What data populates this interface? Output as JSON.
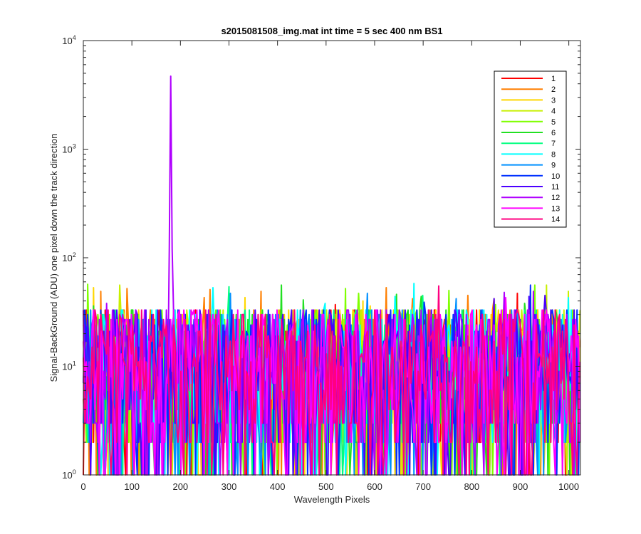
{
  "chart_data": {
    "type": "line",
    "title": "s2015081508_img.mat int time = 5 sec  400 nm BS1",
    "xlabel": "Wavelength Pixels",
    "ylabel": "Signal-BackGround (ADU) one pixel down the track direction",
    "xlim": [
      0,
      1024
    ],
    "ylim": [
      1,
      10000
    ],
    "yscale": "log",
    "x_ticks": [
      "0",
      "100",
      "200",
      "300",
      "400",
      "500",
      "600",
      "700",
      "800",
      "900",
      "1000"
    ],
    "x_tick_values": [
      0,
      100,
      200,
      300,
      400,
      500,
      600,
      700,
      800,
      900,
      1000
    ],
    "y_ticks": [
      {
        "base": "10",
        "exp": "0",
        "value": 1
      },
      {
        "base": "10",
        "exp": "1",
        "value": 10
      },
      {
        "base": "10",
        "exp": "2",
        "value": 100
      },
      {
        "base": "10",
        "exp": "3",
        "value": 1000
      },
      {
        "base": "10",
        "exp": "4",
        "value": 10000
      }
    ],
    "legend_position": "top-right",
    "series": [
      {
        "name": "1",
        "color": "#ff0000"
      },
      {
        "name": "2",
        "color": "#ff7f00"
      },
      {
        "name": "3",
        "color": "#ffd700"
      },
      {
        "name": "4",
        "color": "#c8f000"
      },
      {
        "name": "5",
        "color": "#7fff00"
      },
      {
        "name": "6",
        "color": "#22e022"
      },
      {
        "name": "7",
        "color": "#00ff80"
      },
      {
        "name": "8",
        "color": "#00ffff"
      },
      {
        "name": "9",
        "color": "#0090ff"
      },
      {
        "name": "10",
        "color": "#0030ff"
      },
      {
        "name": "11",
        "color": "#4b00ff"
      },
      {
        "name": "12",
        "color": "#b000ff"
      },
      {
        "name": "13",
        "color": "#ff00ff"
      },
      {
        "name": "14",
        "color": "#ff0080"
      }
    ],
    "noise_range": [
      1,
      60
    ],
    "peak": {
      "series": "12",
      "x": 180,
      "y": 4700
    }
  }
}
